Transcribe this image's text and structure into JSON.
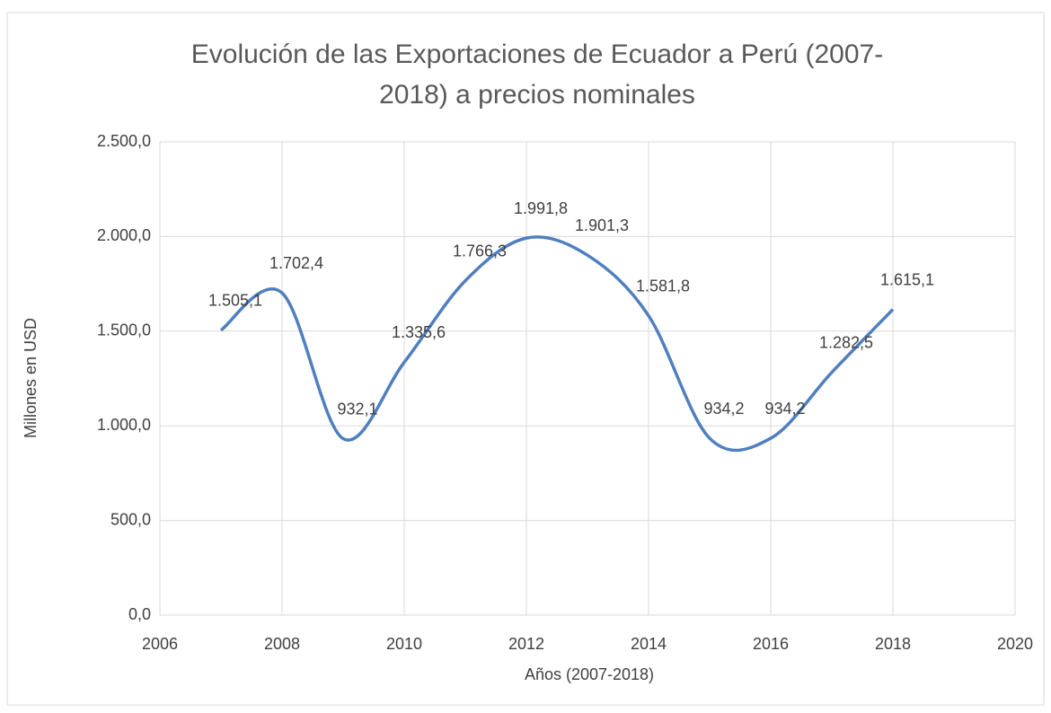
{
  "chart_data": {
    "type": "line",
    "title": [
      "Evolución de las Exportaciones de Ecuador a Perú (2007-",
      "2018) a precios nominales"
    ],
    "x_label": "Años (2007-2018)",
    "y_label": "Millones en USD",
    "x": [
      2007,
      2008,
      2009,
      2010,
      2011,
      2012,
      2013,
      2014,
      2015,
      2016,
      2017,
      2018
    ],
    "series": [
      {
        "color": "#4f7fbf",
        "values": [
          1505.1,
          1702.4,
          932.1,
          1335.6,
          1766.3,
          1991.8,
          1901.3,
          1581.8,
          934.2,
          934.2,
          1282.5,
          1615.1
        ],
        "value_labels": [
          "1.505,1",
          "1.702,4",
          "932,1",
          "1.335,6",
          "1.766,3",
          "1.991,8",
          "1.901,3",
          "1.581,8",
          "934,2",
          "934,2",
          "1.282,5",
          "1.615,1"
        ]
      }
    ],
    "smooth": true,
    "xlim": [
      2006,
      2020
    ],
    "xticks": [
      2006,
      2008,
      2010,
      2012,
      2014,
      2016,
      2018,
      2020
    ],
    "ylim": [
      0,
      2500
    ],
    "yticks": [
      {
        "value": 0,
        "label": "0,0"
      },
      {
        "value": 500,
        "label": "500,0"
      },
      {
        "value": 1000,
        "label": "1.000,0"
      },
      {
        "value": 1500,
        "label": "1.500,0"
      },
      {
        "value": 2000,
        "label": "2.000,0"
      },
      {
        "value": 2500,
        "label": "2.500,0"
      }
    ],
    "grid": true
  }
}
